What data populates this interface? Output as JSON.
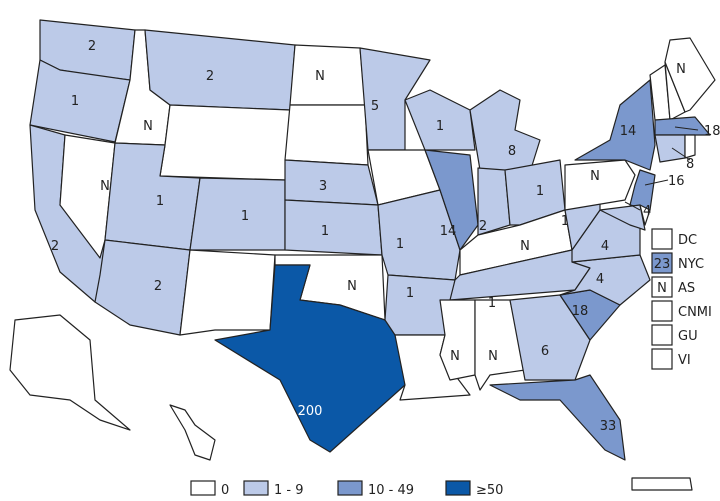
{
  "colors": {
    "zero": "#ffffff",
    "low": "#bccae8",
    "mid": "#7b98cd",
    "high": "#0b58a7",
    "border": "#222222"
  },
  "legend": [
    {
      "label": "0",
      "category": "zero"
    },
    {
      "label": "1 - 9",
      "category": "low"
    },
    {
      "label": "10 - 49",
      "category": "mid"
    },
    {
      "label": "≥50",
      "category": "high"
    }
  ],
  "states": [
    {
      "id": "WA",
      "value": "2",
      "category": "low"
    },
    {
      "id": "OR",
      "value": "1",
      "category": "low"
    },
    {
      "id": "CA",
      "value": "2",
      "category": "low"
    },
    {
      "id": "NV",
      "value": "N",
      "category": "zero"
    },
    {
      "id": "ID",
      "value": "N",
      "category": "zero"
    },
    {
      "id": "MT",
      "value": "2",
      "category": "low"
    },
    {
      "id": "WY",
      "value": "",
      "category": "zero"
    },
    {
      "id": "UT",
      "value": "1",
      "category": "low"
    },
    {
      "id": "AZ",
      "value": "2",
      "category": "low"
    },
    {
      "id": "CO",
      "value": "1",
      "category": "low"
    },
    {
      "id": "NM",
      "value": "",
      "category": "zero"
    },
    {
      "id": "ND",
      "value": "N",
      "category": "zero"
    },
    {
      "id": "SD",
      "value": "",
      "category": "zero"
    },
    {
      "id": "NE",
      "value": "3",
      "category": "low"
    },
    {
      "id": "KS",
      "value": "1",
      "category": "low"
    },
    {
      "id": "OK",
      "value": "N",
      "category": "zero"
    },
    {
      "id": "TX",
      "value": "200",
      "category": "high"
    },
    {
      "id": "MN",
      "value": "5",
      "category": "low"
    },
    {
      "id": "IA",
      "value": "",
      "category": "zero"
    },
    {
      "id": "MO",
      "value": "1",
      "category": "low"
    },
    {
      "id": "AR",
      "value": "1",
      "category": "low"
    },
    {
      "id": "LA",
      "value": "",
      "category": "zero"
    },
    {
      "id": "WI",
      "value": "1",
      "category": "low"
    },
    {
      "id": "IL",
      "value": "14",
      "category": "mid"
    },
    {
      "id": "MI",
      "value": "8",
      "category": "low"
    },
    {
      "id": "IN",
      "value": "2",
      "category": "low"
    },
    {
      "id": "OH",
      "value": "1",
      "category": "low"
    },
    {
      "id": "KY",
      "value": "N",
      "category": "zero"
    },
    {
      "id": "TN",
      "value": "1",
      "category": "low"
    },
    {
      "id": "MS",
      "value": "N",
      "category": "zero"
    },
    {
      "id": "AL",
      "value": "N",
      "category": "zero"
    },
    {
      "id": "GA",
      "value": "6",
      "category": "low"
    },
    {
      "id": "FL",
      "value": "33",
      "category": "mid"
    },
    {
      "id": "SC",
      "value": "18",
      "category": "mid"
    },
    {
      "id": "NC",
      "value": "4",
      "category": "low"
    },
    {
      "id": "VA",
      "value": "4",
      "category": "low"
    },
    {
      "id": "WV",
      "value": "1",
      "category": "low"
    },
    {
      "id": "PA",
      "value": "N",
      "category": "zero"
    },
    {
      "id": "NY",
      "value": "14",
      "category": "mid"
    },
    {
      "id": "NJ",
      "value": "16",
      "category": "mid"
    },
    {
      "id": "MD",
      "value": "4",
      "category": "low"
    },
    {
      "id": "DE",
      "value": "",
      "category": "zero"
    },
    {
      "id": "VT",
      "value": "",
      "category": "zero"
    },
    {
      "id": "NH",
      "value": "",
      "category": "zero"
    },
    {
      "id": "ME",
      "value": "N",
      "category": "zero"
    },
    {
      "id": "MA",
      "value": "18",
      "category": "mid"
    },
    {
      "id": "CT",
      "value": "8",
      "category": "low"
    },
    {
      "id": "RI",
      "value": "",
      "category": "zero"
    },
    {
      "id": "AK",
      "value": "",
      "category": "zero"
    },
    {
      "id": "HI",
      "value": "",
      "category": "zero"
    },
    {
      "id": "PR",
      "value": "",
      "category": "zero"
    }
  ],
  "territories": [
    {
      "label": "DC",
      "value": "",
      "category": "zero"
    },
    {
      "label": "NYC",
      "value": "23",
      "category": "mid"
    },
    {
      "label": "AS",
      "value": "N",
      "category": "zero"
    },
    {
      "label": "CNMI",
      "value": "",
      "category": "zero"
    },
    {
      "label": "GU",
      "value": "",
      "category": "zero"
    },
    {
      "label": "VI",
      "value": "",
      "category": "zero"
    }
  ]
}
